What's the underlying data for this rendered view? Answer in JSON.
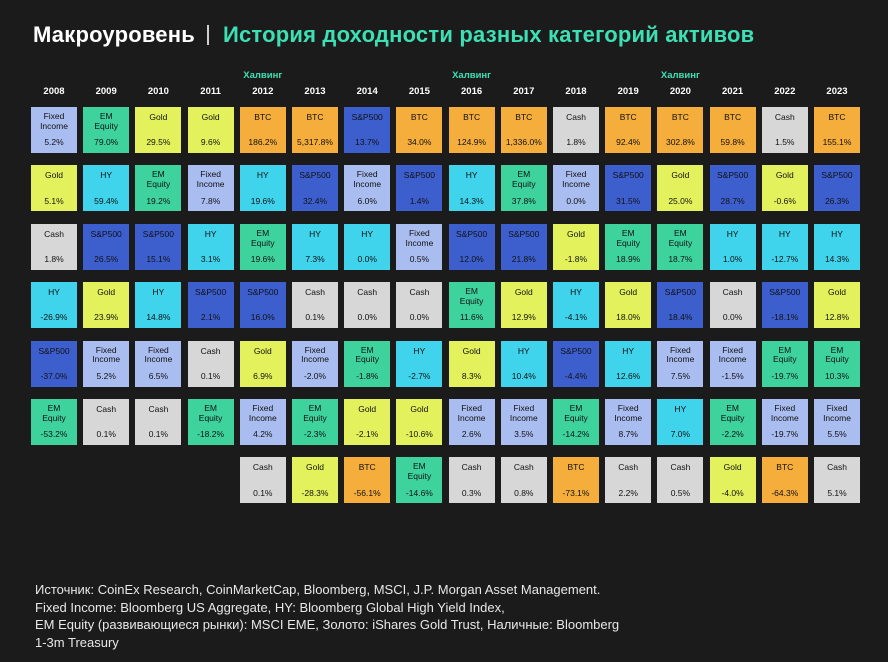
{
  "header": {
    "brand": "Макроуровень",
    "title": "История доходности разных категорий активов"
  },
  "colors": {
    "Fixed Income": "#aabdf0",
    "EM Equity": "#3ed39d",
    "Gold": "#e3f25c",
    "BTC": "#f5ad3c",
    "Cash": "#d7d7d7",
    "HY": "#3fd4ec",
    "S&P500": "#3d5fce"
  },
  "chart_data": {
    "type": "table",
    "title": "История доходности разных категорий активов",
    "years": [
      "2008",
      "2009",
      "2010",
      "2011",
      "2012",
      "2013",
      "2014",
      "2015",
      "2016",
      "2017",
      "2018",
      "2019",
      "2020",
      "2021",
      "2022",
      "2023"
    ],
    "halving_label": "Халвинг",
    "halving_years": [
      "2012",
      "2016",
      "2020"
    ],
    "columns": [
      [
        [
          "Fixed\nIncome",
          "5.2%"
        ],
        [
          "Gold",
          "5.1%"
        ],
        [
          "Cash",
          "1.8%"
        ],
        [
          "HY",
          "-26.9%"
        ],
        [
          "S&P500",
          "-37.0%"
        ],
        [
          "EM\nEquity",
          "-53.2%"
        ]
      ],
      [
        [
          "EM\nEquity",
          "79.0%"
        ],
        [
          "HY",
          "59.4%"
        ],
        [
          "S&P500",
          "26.5%"
        ],
        [
          "Gold",
          "23.9%"
        ],
        [
          "Fixed\nIncome",
          "5.2%"
        ],
        [
          "Cash",
          "0.1%"
        ]
      ],
      [
        [
          "Gold",
          "29.5%"
        ],
        [
          "EM\nEquity",
          "19.2%"
        ],
        [
          "S&P500",
          "15.1%"
        ],
        [
          "HY",
          "14.8%"
        ],
        [
          "Fixed\nIncome",
          "6.5%"
        ],
        [
          "Cash",
          "0.1%"
        ]
      ],
      [
        [
          "Gold",
          "9.6%"
        ],
        [
          "Fixed\nIncome",
          "7.8%"
        ],
        [
          "HY",
          "3.1%"
        ],
        [
          "S&P500",
          "2.1%"
        ],
        [
          "Cash",
          "0.1%"
        ],
        [
          "EM\nEquity",
          "-18.2%"
        ]
      ],
      [
        [
          "BTC",
          "186.2%"
        ],
        [
          "HY",
          "19.6%"
        ],
        [
          "EM\nEquity",
          "19.6%"
        ],
        [
          "S&P500",
          "16.0%"
        ],
        [
          "Gold",
          "6.9%"
        ],
        [
          "Fixed\nIncome",
          "4.2%"
        ],
        [
          "Cash",
          "0.1%"
        ]
      ],
      [
        [
          "BTC",
          "5,317.8%"
        ],
        [
          "S&P500",
          "32.4%"
        ],
        [
          "HY",
          "7.3%"
        ],
        [
          "Cash",
          "0.1%"
        ],
        [
          "Fixed\nIncome",
          "-2.0%"
        ],
        [
          "EM\nEquity",
          "-2.3%"
        ],
        [
          "Gold",
          "-28.3%"
        ]
      ],
      [
        [
          "S&P500",
          "13.7%"
        ],
        [
          "Fixed\nIncome",
          "6.0%"
        ],
        [
          "HY",
          "0.0%"
        ],
        [
          "Cash",
          "0.0%"
        ],
        [
          "EM\nEquity",
          "-1.8%"
        ],
        [
          "Gold",
          "-2.1%"
        ],
        [
          "BTC",
          "-56.1%"
        ]
      ],
      [
        [
          "BTC",
          "34.0%"
        ],
        [
          "S&P500",
          "1.4%"
        ],
        [
          "Fixed\nIncome",
          "0.5%"
        ],
        [
          "Cash",
          "0.0%"
        ],
        [
          "HY",
          "-2.7%"
        ],
        [
          "Gold",
          "-10.6%"
        ],
        [
          "EM\nEquity",
          "-14.6%"
        ]
      ],
      [
        [
          "BTC",
          "124.9%"
        ],
        [
          "HY",
          "14.3%"
        ],
        [
          "S&P500",
          "12.0%"
        ],
        [
          "EM\nEquity",
          "11.6%"
        ],
        [
          "Gold",
          "8.3%"
        ],
        [
          "Fixed\nIncome",
          "2.6%"
        ],
        [
          "Cash",
          "0.3%"
        ]
      ],
      [
        [
          "BTC",
          "1,336.0%"
        ],
        [
          "EM\nEquity",
          "37.8%"
        ],
        [
          "S&P500",
          "21.8%"
        ],
        [
          "Gold",
          "12.9%"
        ],
        [
          "HY",
          "10.4%"
        ],
        [
          "Fixed\nIncome",
          "3.5%"
        ],
        [
          "Cash",
          "0.8%"
        ]
      ],
      [
        [
          "Cash",
          "1.8%"
        ],
        [
          "Fixed\nIncome",
          "0.0%"
        ],
        [
          "Gold",
          "-1.8%"
        ],
        [
          "HY",
          "-4.1%"
        ],
        [
          "S&P500",
          "-4.4%"
        ],
        [
          "EM\nEquity",
          "-14.2%"
        ],
        [
          "BTC",
          "-73.1%"
        ]
      ],
      [
        [
          "BTC",
          "92.4%"
        ],
        [
          "S&P500",
          "31.5%"
        ],
        [
          "EM\nEquity",
          "18.9%"
        ],
        [
          "Gold",
          "18.0%"
        ],
        [
          "HY",
          "12.6%"
        ],
        [
          "Fixed\nIncome",
          "8.7%"
        ],
        [
          "Cash",
          "2.2%"
        ]
      ],
      [
        [
          "BTC",
          "302.8%"
        ],
        [
          "Gold",
          "25.0%"
        ],
        [
          "EM\nEquity",
          "18.7%"
        ],
        [
          "S&P500",
          "18.4%"
        ],
        [
          "Fixed\nIncome",
          "7.5%"
        ],
        [
          "HY",
          "7.0%"
        ],
        [
          "Cash",
          "0.5%"
        ]
      ],
      [
        [
          "BTC",
          "59.8%"
        ],
        [
          "S&P500",
          "28.7%"
        ],
        [
          "HY",
          "1.0%"
        ],
        [
          "Cash",
          "0.0%"
        ],
        [
          "Fixed\nIncome",
          "-1.5%"
        ],
        [
          "EM\nEquity",
          "-2.2%"
        ],
        [
          "Gold",
          "-4.0%"
        ]
      ],
      [
        [
          "Cash",
          "1.5%"
        ],
        [
          "Gold",
          "-0.6%"
        ],
        [
          "HY",
          "-12.7%"
        ],
        [
          "S&P500",
          "-18.1%"
        ],
        [
          "EM\nEquity",
          "-19.7%"
        ],
        [
          "Fixed\nIncome",
          "-19.7%"
        ],
        [
          "BTC",
          "-64.3%"
        ]
      ],
      [
        [
          "BTC",
          "155.1%"
        ],
        [
          "S&P500",
          "26.3%"
        ],
        [
          "HY",
          "14.3%"
        ],
        [
          "Gold",
          "12.8%"
        ],
        [
          "EM\nEquity",
          "10.3%"
        ],
        [
          "Fixed\nIncome",
          "5.5%"
        ],
        [
          "Cash",
          "5.1%"
        ]
      ]
    ]
  },
  "footer": {
    "lines": [
      "Источник: CoinEx Research, CoinMarketCap, Bloomberg, MSCI, J.P. Morgan Asset Management.",
      "Fixed Income: Bloomberg US Aggregate, HY: Bloomberg Global High Yield Index,",
      "EM Equity (развивающиеся рынки): MSCI EME, Золото: iShares Gold Trust, Наличные: Bloomberg",
      "1-3m Treasury"
    ]
  }
}
